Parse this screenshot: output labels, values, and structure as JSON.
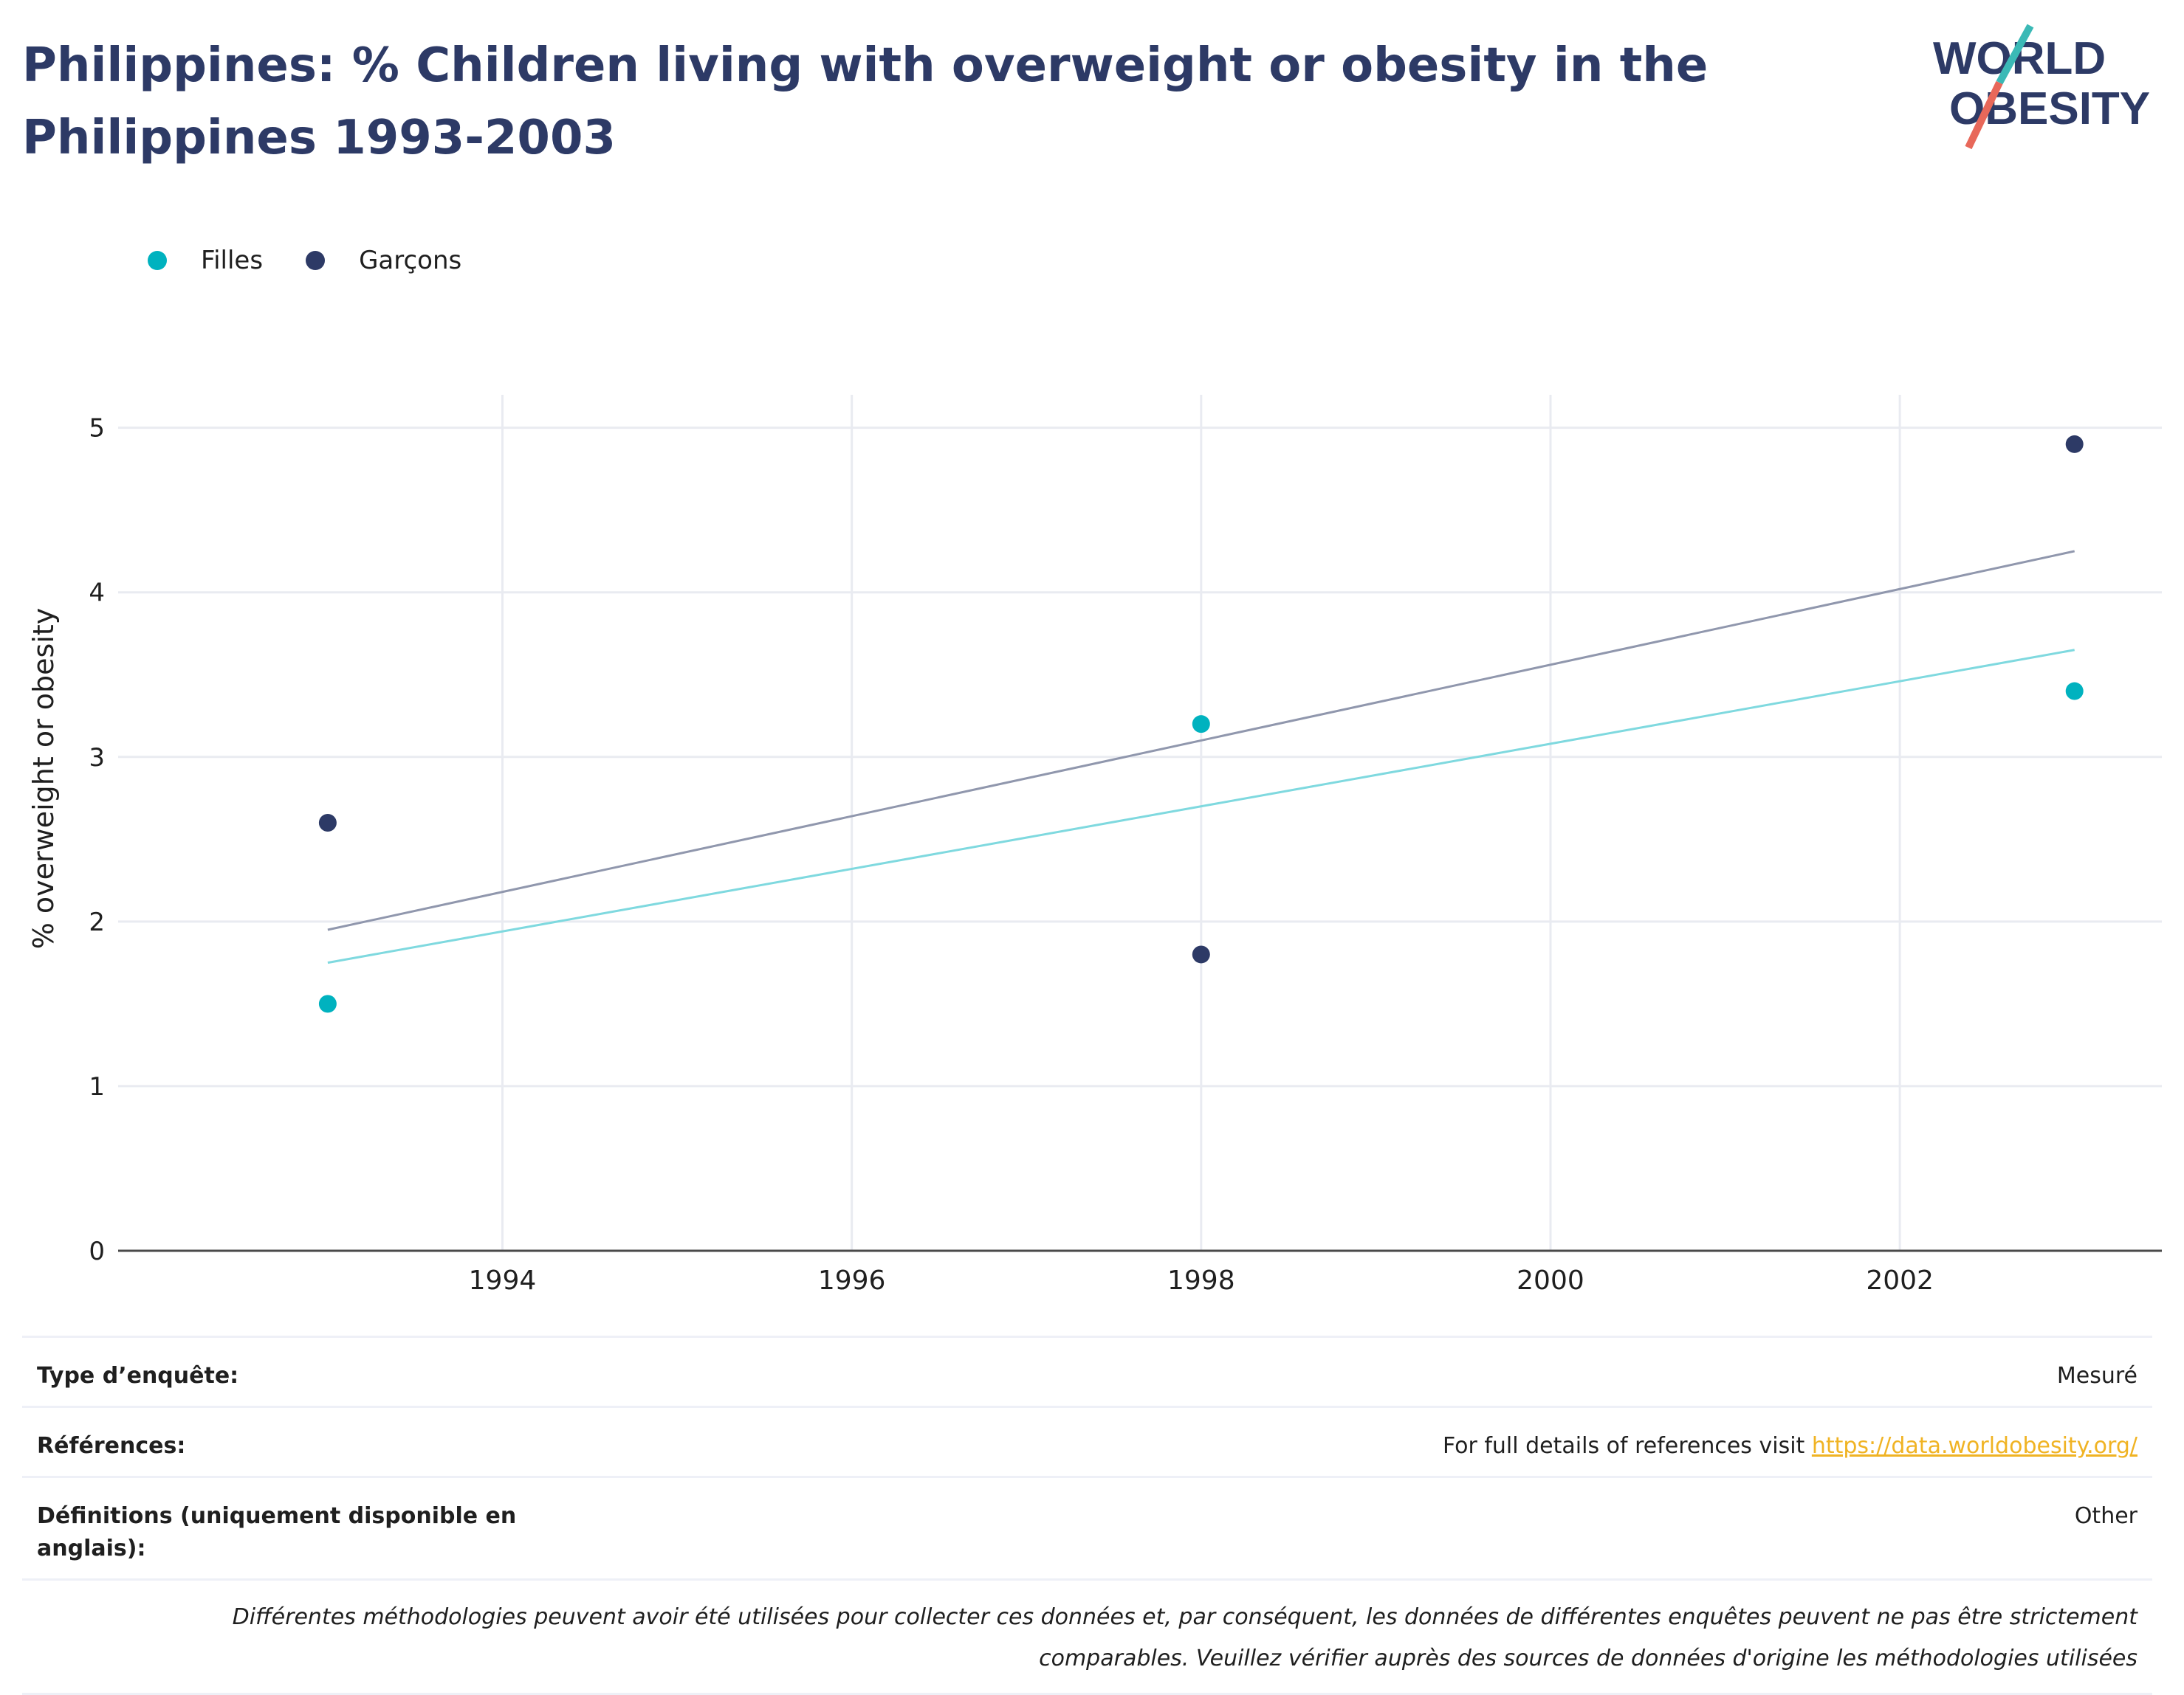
{
  "header": {
    "title": "Philippines: % Children living with overweight or obesity in the Philippines 1993-2003"
  },
  "logo": {
    "line1": "WORLD",
    "line2": "OBESITY"
  },
  "legend": {
    "items": [
      {
        "label": "Filles",
        "color": "#00b2bf"
      },
      {
        "label": "Garçons",
        "color": "#2d3a66"
      }
    ]
  },
  "chart_data": {
    "type": "scatter",
    "title": "Philippines: % Children living with overweight or obesity in the Philippines 1993-2003",
    "ylabel": "% overweight or obesity",
    "xlabel": "",
    "xlim": [
      1991.8,
      2003.5
    ],
    "ylim": [
      0,
      5.2
    ],
    "x_ticks": [
      1994,
      1996,
      1998,
      2000,
      2002
    ],
    "y_ticks": [
      0,
      1,
      2,
      3,
      4,
      5
    ],
    "grid": true,
    "legend_position": "top-left",
    "series": [
      {
        "name": "Filles",
        "color": "#00b2bf",
        "trend_color": "#7fd9df",
        "points": [
          {
            "x": 1993,
            "y": 1.5
          },
          {
            "x": 1998,
            "y": 3.2
          },
          {
            "x": 2003,
            "y": 3.4
          }
        ],
        "trend": [
          {
            "x": 1993,
            "y": 1.75
          },
          {
            "x": 2003,
            "y": 3.65
          }
        ]
      },
      {
        "name": "Garçons",
        "color": "#2d3a66",
        "trend_color": "#9097ad",
        "points": [
          {
            "x": 1993,
            "y": 2.6
          },
          {
            "x": 1998,
            "y": 1.8
          },
          {
            "x": 2003,
            "y": 4.9
          }
        ],
        "trend": [
          {
            "x": 1993,
            "y": 1.95
          },
          {
            "x": 2003,
            "y": 4.25
          }
        ]
      }
    ]
  },
  "info": {
    "survey_label": "Type d’enquête:",
    "survey_value": "Mesuré",
    "refs_label": "Références:",
    "refs_text": "For full details of references visit ",
    "refs_link": "https://data.worldobesity.org/",
    "defs_label": "Définitions (uniquement disponible en anglais):",
    "defs_value": "Other",
    "note_line1": "Différentes méthodologies peuvent avoir été utilisées pour collecter ces données et, par conséquent, les données de différentes enquêtes peuvent ne pas être strictement",
    "note_line2": "comparables. Veuillez vérifier auprès des sources de données d'origine les méthodologies utilisées"
  }
}
